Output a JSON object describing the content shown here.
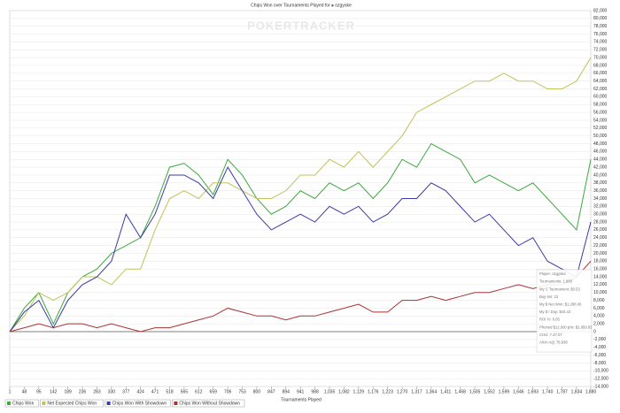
{
  "chart_data": {
    "type": "line",
    "title": "Chips Won over Tournaments Played for ♠ ozgyoke",
    "watermark": "POKERTRACKER",
    "x_label": "Tournaments Played",
    "x": [
      1,
      48,
      95,
      142,
      189,
      236,
      283,
      330,
      377,
      424,
      471,
      518,
      565,
      612,
      659,
      706,
      753,
      800,
      847,
      894,
      941,
      988,
      1035,
      1082,
      1129,
      1176,
      1223,
      1270,
      1317,
      1364,
      1411,
      1458,
      1505,
      1552,
      1599,
      1646,
      1693,
      1740,
      1787,
      1834,
      1880
    ],
    "xlim": [
      1,
      1880
    ],
    "xticks": [
      1,
      48,
      95,
      142,
      189,
      236,
      283,
      330,
      377,
      424,
      471,
      518,
      565,
      612,
      659,
      706,
      753,
      800,
      847,
      894,
      941,
      988,
      {
        "value": 1035,
        "label": "1,035"
      },
      {
        "value": 1082,
        "label": "1,082"
      },
      {
        "value": 1129,
        "label": "1,129"
      },
      {
        "value": 1176,
        "label": "1,176"
      },
      {
        "value": 1223,
        "label": "1,223"
      },
      {
        "value": 1270,
        "label": "1,270"
      },
      {
        "value": 1317,
        "label": "1,317"
      },
      {
        "value": 1364,
        "label": "1,364"
      },
      {
        "value": 1411,
        "label": "1,411"
      },
      {
        "value": 1458,
        "label": "1,458"
      },
      {
        "value": 1505,
        "label": "1,505"
      },
      {
        "value": 1552,
        "label": "1,552"
      },
      {
        "value": 1599,
        "label": "1,599"
      },
      {
        "value": 1646,
        "label": "1,646"
      },
      {
        "value": 1693,
        "label": "1,693"
      },
      {
        "value": 1740,
        "label": "1,740"
      },
      {
        "value": 1787,
        "label": "1,787"
      },
      {
        "value": 1834,
        "label": "1,834"
      },
      {
        "value": 1880,
        "label": "1,880"
      }
    ],
    "ylim": [
      -14000,
      82000
    ],
    "yticks": [
      {
        "value": -14000,
        "label": "-14,000"
      },
      {
        "value": -12000,
        "label": "-12,000"
      },
      {
        "value": -10000,
        "label": "-10,000"
      },
      {
        "value": -8000,
        "label": "-8,000"
      },
      {
        "value": -6000,
        "label": "-6,000"
      },
      {
        "value": -4000,
        "label": "-4,000"
      },
      {
        "value": -2000,
        "label": "-2,000"
      },
      0,
      {
        "value": 2000,
        "label": "2,000"
      },
      {
        "value": 4000,
        "label": "4,000"
      },
      {
        "value": 6000,
        "label": "6,000"
      },
      {
        "value": 8000,
        "label": "8,000"
      },
      {
        "value": 10000,
        "label": "10,000"
      },
      {
        "value": 12000,
        "label": "12,000"
      },
      {
        "value": 14000,
        "label": "14,000"
      },
      {
        "value": 16000,
        "label": "16,000"
      },
      {
        "value": 18000,
        "label": "18,000"
      },
      {
        "value": 20000,
        "label": "20,000"
      },
      {
        "value": 22000,
        "label": "22,000"
      },
      {
        "value": 24000,
        "label": "24,000"
      },
      {
        "value": 26000,
        "label": "26,000"
      },
      {
        "value": 28000,
        "label": "28,000"
      },
      {
        "value": 30000,
        "label": "30,000"
      },
      {
        "value": 32000,
        "label": "32,000"
      },
      {
        "value": 34000,
        "label": "34,000"
      },
      {
        "value": 36000,
        "label": "36,000"
      },
      {
        "value": 38000,
        "label": "38,000"
      },
      {
        "value": 40000,
        "label": "40,000"
      },
      {
        "value": 42000,
        "label": "42,000"
      },
      {
        "value": 44000,
        "label": "44,000"
      },
      {
        "value": 46000,
        "label": "46,000"
      },
      {
        "value": 48000,
        "label": "48,000"
      },
      {
        "value": 50000,
        "label": "50,000"
      },
      {
        "value": 52000,
        "label": "52,000"
      },
      {
        "value": 54000,
        "label": "54,000"
      },
      {
        "value": 56000,
        "label": "56,000"
      },
      {
        "value": 58000,
        "label": "58,000"
      },
      {
        "value": 60000,
        "label": "60,000"
      },
      {
        "value": 62000,
        "label": "62,000"
      },
      {
        "value": 64000,
        "label": "64,000"
      },
      {
        "value": 66000,
        "label": "66,000"
      },
      {
        "value": 68000,
        "label": "68,000"
      },
      {
        "value": 70000,
        "label": "70,000"
      },
      {
        "value": 72000,
        "label": "72,000"
      },
      {
        "value": 74000,
        "label": "74,000"
      },
      {
        "value": 76000,
        "label": "76,000"
      },
      {
        "value": 78000,
        "label": "78,000"
      },
      {
        "value": 80000,
        "label": "80,000"
      },
      {
        "value": 82000,
        "label": "82,000"
      }
    ],
    "grid": true,
    "series": [
      {
        "name": "Chips Won",
        "color": "#3fa83f",
        "values": [
          0,
          6000,
          10000,
          2000,
          10000,
          14000,
          16000,
          20000,
          22000,
          24000,
          32000,
          42000,
          43000,
          40000,
          35000,
          44000,
          40000,
          34000,
          30000,
          32000,
          36000,
          34000,
          38000,
          36000,
          38000,
          34000,
          38000,
          44000,
          42000,
          48000,
          46000,
          44000,
          38000,
          40000,
          38000,
          36000,
          38000,
          34000,
          30000,
          26000,
          44000
        ]
      },
      {
        "name": "Net Expected Chips Won",
        "color": "#c2c25a",
        "values": [
          0,
          4000,
          10000,
          8000,
          10000,
          14000,
          14000,
          12000,
          16000,
          16000,
          26000,
          34000,
          36000,
          34000,
          38000,
          38000,
          36000,
          34000,
          34000,
          36000,
          40000,
          40000,
          44000,
          42000,
          46000,
          42000,
          46000,
          50000,
          56000,
          58000,
          60000,
          62000,
          64000,
          64000,
          66000,
          64000,
          64000,
          62000,
          62000,
          64000,
          70000
        ]
      },
      {
        "name": "Chips Won With Showdown",
        "color": "#3a3aa8",
        "values": [
          0,
          5000,
          8000,
          1000,
          8000,
          12000,
          14000,
          18000,
          30000,
          24000,
          30000,
          40000,
          40000,
          38000,
          34000,
          42000,
          36000,
          30000,
          26000,
          28000,
          30000,
          28000,
          32000,
          30000,
          32000,
          28000,
          30000,
          34000,
          34000,
          38000,
          36000,
          32000,
          28000,
          30000,
          26000,
          22000,
          24000,
          18000,
          16000,
          14000,
          28000
        ]
      },
      {
        "name": "Chips Won Without Showdown",
        "color": "#a83232",
        "values": [
          0,
          1000,
          2000,
          1000,
          2000,
          2000,
          1000,
          2000,
          1000,
          0,
          1000,
          1000,
          2000,
          3000,
          4000,
          6000,
          5000,
          4000,
          4000,
          3000,
          4000,
          4000,
          5000,
          6000,
          7000,
          5000,
          5000,
          8000,
          8000,
          9000,
          8000,
          9000,
          10000,
          10000,
          11000,
          12000,
          11000,
          12000,
          12000,
          14000,
          18000
        ]
      }
    ],
    "tooltip": [
      "Player: ozgyoke",
      "Tournaments: 1,880",
      "My C Tournament: $0.53",
      "Buy-Ins: 22",
      "My $ Net Won: $1,288.06",
      "My $ / Day: $43.43",
      "ROI %: 8.05",
      "Phoned $12,000 p/w: $2,959.83",
      "CHIJ: 7.37.07",
      "All-In Adj: 78,838"
    ]
  }
}
